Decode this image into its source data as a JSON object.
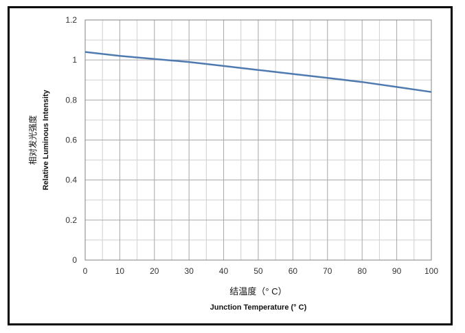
{
  "chart_data": {
    "type": "line",
    "title": "",
    "xlabel": "结温度（° C）",
    "xlabel_en": "Junction Temperature (° C)",
    "ylabel": "相对发光强度",
    "ylabel_en": "Relative Luminous Intensity",
    "xlim": [
      0,
      100
    ],
    "ylim": [
      0,
      1.2
    ],
    "x_ticks": [
      "0",
      "10",
      "20",
      "30",
      "40",
      "50",
      "60",
      "70",
      "80",
      "90",
      "100"
    ],
    "y_ticks": [
      "0",
      "0.2",
      "0.4",
      "0.6",
      "0.8",
      "1",
      "1.2"
    ],
    "grid": true,
    "legend": "none",
    "series": [
      {
        "color": "#4f7ab0",
        "x": [
          0,
          10,
          20,
          30,
          40,
          50,
          60,
          70,
          80,
          90,
          100
        ],
        "y": [
          1.04,
          1.02,
          1.005,
          0.99,
          0.97,
          0.95,
          0.93,
          0.91,
          0.89,
          0.865,
          0.84
        ]
      }
    ]
  }
}
